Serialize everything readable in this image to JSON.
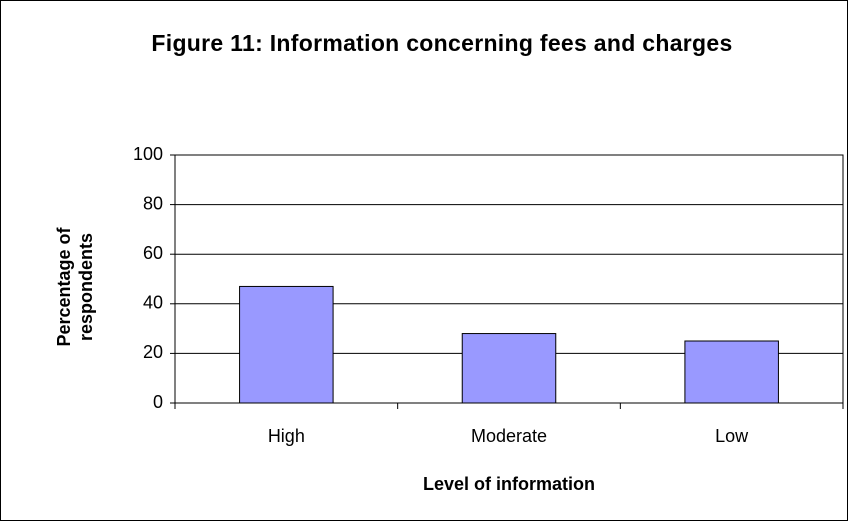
{
  "chart_data": {
    "type": "bar",
    "title": "Figure 11: Information concerning fees and charges",
    "x_label": "Level of information",
    "y_label": "Percentage of respondents",
    "categories": [
      "High",
      "Moderate",
      "Low"
    ],
    "values": [
      47,
      28,
      25
    ],
    "color": "#9999ff",
    "ylim": [
      0,
      100
    ],
    "yticks": [
      0,
      20,
      40,
      60,
      80,
      100
    ],
    "grid": true
  }
}
